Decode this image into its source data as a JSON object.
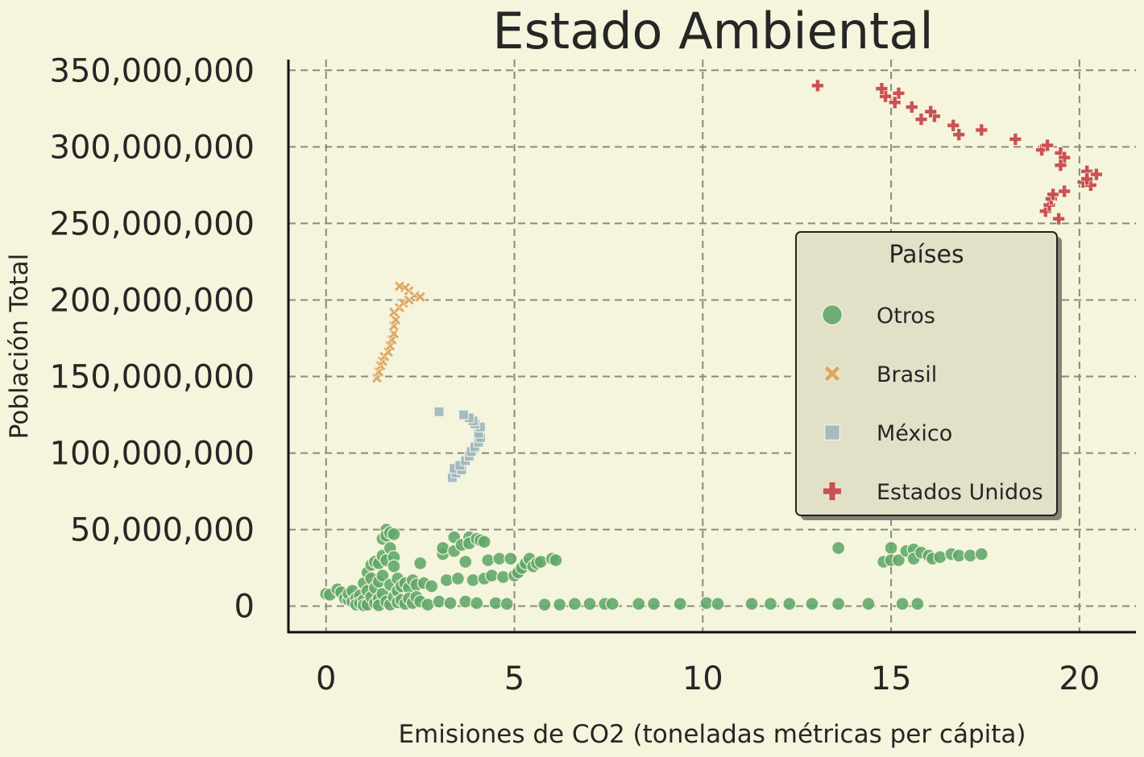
{
  "chart_data": {
    "type": "scatter",
    "title": "Estado Ambiental",
    "xlabel": "Emisiones de CO2 (toneladas métricas per cápita)",
    "ylabel": "Población Total",
    "xlim": [
      -1,
      21.5
    ],
    "ylim": [
      -17000000,
      357000000
    ],
    "x_ticks": [
      0,
      5,
      10,
      15,
      20
    ],
    "x_tick_labels": [
      "0",
      "5",
      "10",
      "15",
      "20"
    ],
    "y_ticks": [
      0,
      50000000,
      100000000,
      150000000,
      200000000,
      250000000,
      300000000,
      350000000
    ],
    "y_tick_labels": [
      "0",
      "50,000,000",
      "100,000,000",
      "150,000,000",
      "200,000,000",
      "250,000,000",
      "300,000,000",
      "350,000,000"
    ],
    "grid": true,
    "legend": {
      "title": "Países",
      "placement": "center-right"
    },
    "colors": {
      "background": "#f5f4dc",
      "Otros": "#5fa86a",
      "Brasil": "#dda25a",
      "México": "#9fb8c2",
      "Estados Unidos": "#c84a4e"
    },
    "series": [
      {
        "name": "Otros",
        "marker": "circle",
        "points": [
          [
            0.0,
            8000000
          ],
          [
            0.1,
            7500000
          ],
          [
            0.3,
            11000000
          ],
          [
            0.4,
            9000000
          ],
          [
            0.5,
            5000000
          ],
          [
            0.6,
            4000000
          ],
          [
            0.6,
            8000000
          ],
          [
            0.7,
            3000000
          ],
          [
            0.7,
            10000000
          ],
          [
            0.8,
            5000000
          ],
          [
            0.8,
            1000000
          ],
          [
            0.9,
            7000000
          ],
          [
            0.9,
            2000000
          ],
          [
            1.0,
            15000000
          ],
          [
            1.0,
            4000000
          ],
          [
            1.0,
            500000
          ],
          [
            1.1,
            22000000
          ],
          [
            1.1,
            10000000
          ],
          [
            1.1,
            1000000
          ],
          [
            1.2,
            27000000
          ],
          [
            1.2,
            18000000
          ],
          [
            1.2,
            6000000
          ],
          [
            1.3,
            29000000
          ],
          [
            1.3,
            12000000
          ],
          [
            1.3,
            2000000
          ],
          [
            1.4,
            28000000
          ],
          [
            1.4,
            16000000
          ],
          [
            1.4,
            5000000
          ],
          [
            1.4,
            500000
          ],
          [
            1.5,
            44000000
          ],
          [
            1.5,
            33000000
          ],
          [
            1.5,
            20000000
          ],
          [
            1.5,
            8000000
          ],
          [
            1.6,
            50000000
          ],
          [
            1.6,
            46000000
          ],
          [
            1.6,
            30000000
          ],
          [
            1.6,
            3000000
          ],
          [
            1.7,
            48000000
          ],
          [
            1.7,
            38000000
          ],
          [
            1.7,
            14000000
          ],
          [
            1.7,
            1000000
          ],
          [
            1.8,
            47000000
          ],
          [
            1.8,
            32000000
          ],
          [
            1.8,
            26000000
          ],
          [
            1.8,
            6000000
          ],
          [
            1.9,
            18000000
          ],
          [
            1.9,
            10000000
          ],
          [
            1.9,
            2500000
          ],
          [
            2.0,
            13000000
          ],
          [
            2.0,
            4000000
          ],
          [
            2.1,
            15000000
          ],
          [
            2.1,
            1500000
          ],
          [
            2.2,
            12000000
          ],
          [
            2.2,
            5000000
          ],
          [
            2.3,
            17000000
          ],
          [
            2.3,
            2000000
          ],
          [
            2.4,
            14000000
          ],
          [
            2.4,
            6000000
          ],
          [
            2.5,
            28000000
          ],
          [
            2.5,
            3000000
          ],
          [
            2.6,
            15000000
          ],
          [
            2.7,
            1000000
          ],
          [
            2.8,
            13000000
          ],
          [
            3.0,
            3000000
          ],
          [
            3.1,
            34000000
          ],
          [
            3.1,
            38000000
          ],
          [
            3.2,
            17000000
          ],
          [
            3.3,
            2000000
          ],
          [
            3.4,
            45000000
          ],
          [
            3.4,
            36000000
          ],
          [
            3.5,
            18000000
          ],
          [
            3.6,
            40000000
          ],
          [
            3.7,
            29000000
          ],
          [
            3.7,
            3000000
          ],
          [
            3.8,
            45000000
          ],
          [
            3.8,
            41000000
          ],
          [
            3.9,
            17000000
          ],
          [
            4.0,
            44000000
          ],
          [
            4.0,
            2000000
          ],
          [
            4.1,
            43000000
          ],
          [
            4.2,
            42000000
          ],
          [
            4.2,
            18000000
          ],
          [
            4.3,
            30000000
          ],
          [
            4.4,
            20000000
          ],
          [
            4.5,
            2000000
          ],
          [
            4.6,
            31000000
          ],
          [
            4.7,
            19000000
          ],
          [
            4.8,
            1500000
          ],
          [
            4.9,
            31000000
          ],
          [
            5.0,
            20000000
          ],
          [
            5.1,
            22000000
          ],
          [
            5.2,
            25000000
          ],
          [
            5.3,
            28000000
          ],
          [
            5.4,
            31000000
          ],
          [
            5.5,
            26000000
          ],
          [
            5.6,
            28000000
          ],
          [
            5.7,
            29000000
          ],
          [
            5.8,
            1000000
          ],
          [
            6.0,
            31000000
          ],
          [
            6.1,
            30000000
          ],
          [
            6.2,
            1000000
          ],
          [
            6.6,
            1500000
          ],
          [
            7.0,
            1500000
          ],
          [
            7.4,
            1500000
          ],
          [
            7.6,
            1500000
          ],
          [
            8.3,
            1500000
          ],
          [
            8.7,
            1500000
          ],
          [
            9.4,
            1500000
          ],
          [
            10.1,
            2000000
          ],
          [
            10.4,
            1500000
          ],
          [
            11.3,
            1500000
          ],
          [
            11.8,
            1500000
          ],
          [
            12.3,
            1500000
          ],
          [
            12.9,
            1500000
          ],
          [
            13.6,
            38000000
          ],
          [
            13.6,
            1500000
          ],
          [
            14.4,
            1500000
          ],
          [
            14.8,
            29000000
          ],
          [
            15.0,
            38000000
          ],
          [
            15.0,
            30000000
          ],
          [
            15.2,
            30000000
          ],
          [
            15.3,
            1500000
          ],
          [
            15.4,
            36000000
          ],
          [
            15.6,
            37000000
          ],
          [
            15.6,
            31000000
          ],
          [
            15.7,
            1500000
          ],
          [
            15.8,
            35000000
          ],
          [
            16.0,
            33000000
          ],
          [
            16.1,
            31000000
          ],
          [
            16.3,
            32000000
          ],
          [
            16.6,
            34000000
          ],
          [
            16.8,
            33000000
          ],
          [
            17.1,
            33000000
          ],
          [
            17.4,
            34000000
          ]
        ]
      },
      {
        "name": "Brasil",
        "marker": "x",
        "points": [
          [
            1.35,
            149000000
          ],
          [
            1.4,
            153000000
          ],
          [
            1.45,
            157000000
          ],
          [
            1.5,
            160000000
          ],
          [
            1.55,
            163000000
          ],
          [
            1.65,
            166000000
          ],
          [
            1.7,
            170000000
          ],
          [
            1.75,
            174000000
          ],
          [
            1.8,
            178000000
          ],
          [
            1.8,
            183000000
          ],
          [
            1.85,
            187000000
          ],
          [
            1.8,
            192000000
          ],
          [
            1.95,
            195000000
          ],
          [
            2.05,
            198000000
          ],
          [
            2.2,
            200000000
          ],
          [
            2.35,
            203000000
          ],
          [
            2.5,
            202000000
          ],
          [
            2.2,
            206000000
          ],
          [
            2.1,
            208000000
          ],
          [
            1.95,
            209000000
          ]
        ]
      },
      {
        "name": "México",
        "marker": "square",
        "points": [
          [
            3.35,
            84000000
          ],
          [
            3.45,
            87000000
          ],
          [
            3.4,
            90000000
          ],
          [
            3.6,
            89000000
          ],
          [
            3.55,
            92000000
          ],
          [
            3.7,
            95000000
          ],
          [
            3.8,
            98000000
          ],
          [
            3.85,
            101000000
          ],
          [
            3.95,
            104000000
          ],
          [
            4.05,
            107000000
          ],
          [
            4.1,
            110000000
          ],
          [
            4.05,
            113000000
          ],
          [
            4.1,
            117000000
          ],
          [
            3.95,
            119000000
          ],
          [
            3.9,
            121000000
          ],
          [
            3.8,
            123000000
          ],
          [
            3.65,
            125000000
          ],
          [
            3.0,
            127000000
          ]
        ]
      },
      {
        "name": "Estados Unidos",
        "marker": "plus",
        "points": [
          [
            19.1,
            258000000
          ],
          [
            19.2,
            262000000
          ],
          [
            19.25,
            266000000
          ],
          [
            19.3,
            269000000
          ],
          [
            19.45,
            253000000
          ],
          [
            19.6,
            271000000
          ],
          [
            20.1,
            277000000
          ],
          [
            20.3,
            275000000
          ],
          [
            20.2,
            284000000
          ],
          [
            20.45,
            282000000
          ],
          [
            20.2,
            279000000
          ],
          [
            19.0,
            298000000
          ],
          [
            19.15,
            301000000
          ],
          [
            19.5,
            296000000
          ],
          [
            19.6,
            293000000
          ],
          [
            19.5,
            288000000
          ],
          [
            18.3,
            305000000
          ],
          [
            17.4,
            311000000
          ],
          [
            16.8,
            308000000
          ],
          [
            16.65,
            314000000
          ],
          [
            16.15,
            320000000
          ],
          [
            16.05,
            323000000
          ],
          [
            15.8,
            318000000
          ],
          [
            15.55,
            326000000
          ],
          [
            15.2,
            335000000
          ],
          [
            15.1,
            329000000
          ],
          [
            14.85,
            333000000
          ],
          [
            14.75,
            338000000
          ],
          [
            13.05,
            340000000
          ]
        ]
      }
    ]
  }
}
